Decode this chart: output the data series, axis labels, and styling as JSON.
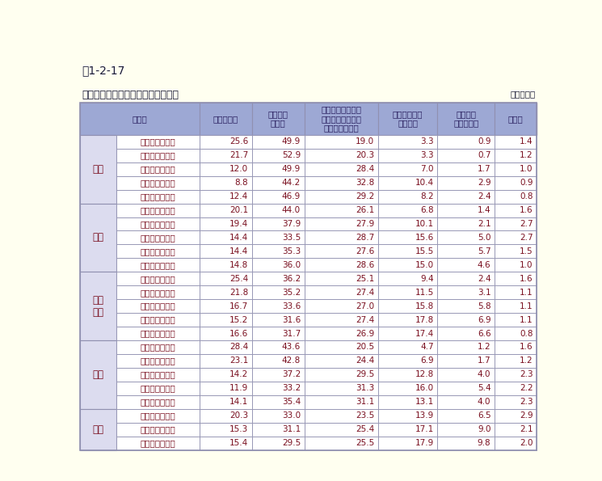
{
  "title": "表1-2-17",
  "subtitle": "教科の授業がどの程度わかりますか",
  "unit": "（単位％）",
  "col_headers": [
    "区　分",
    "よくわかる",
    "だいたい\nわかる",
    "わかることとわか\nらないことが半分\nくらいずつある",
    "わからないこ\nとが多い",
    "ほとんど\nわからない",
    "無回答"
  ],
  "subject_groups": [
    {
      "name": "国語",
      "rows": 5
    },
    {
      "name": "社会",
      "rows": 5
    },
    {
      "name": "算数\n数学",
      "rows": 5
    },
    {
      "name": "理科",
      "rows": 5
    },
    {
      "name": "英語",
      "rows": 3
    }
  ],
  "rows": [
    [
      "小学校第５学年",
      "25.6",
      "49.9",
      "19.0",
      "3.3",
      "0.9",
      "1.4"
    ],
    [
      "小学校第６学年",
      "21.7",
      "52.9",
      "20.3",
      "3.3",
      "0.7",
      "1.2"
    ],
    [
      "中学校第１学年",
      "12.0",
      "49.9",
      "28.4",
      "7.0",
      "1.7",
      "1.0"
    ],
    [
      "中学校第２学年",
      "8.8",
      "44.2",
      "32.8",
      "10.4",
      "2.9",
      "0.9"
    ],
    [
      "中学校第３学年",
      "12.4",
      "46.9",
      "29.2",
      "8.2",
      "2.4",
      "0.8"
    ],
    [
      "小学校第５学年",
      "20.1",
      "44.0",
      "26.1",
      "6.8",
      "1.4",
      "1.6"
    ],
    [
      "小学校第６学年",
      "19.4",
      "37.9",
      "27.9",
      "10.1",
      "2.1",
      "2.7"
    ],
    [
      "中学校第１学年",
      "14.4",
      "33.5",
      "28.7",
      "15.6",
      "5.0",
      "2.7"
    ],
    [
      "中学校第２学年",
      "14.4",
      "35.3",
      "27.6",
      "15.5",
      "5.7",
      "1.5"
    ],
    [
      "中学校第３学年",
      "14.8",
      "36.0",
      "28.6",
      "15.0",
      "4.6",
      "1.0"
    ],
    [
      "小学校第５学年",
      "25.4",
      "36.2",
      "25.1",
      "9.4",
      "2.4",
      "1.6"
    ],
    [
      "小学校第６学年",
      "21.8",
      "35.2",
      "27.4",
      "11.5",
      "3.1",
      "1.1"
    ],
    [
      "中学校第１学年",
      "16.7",
      "33.6",
      "27.0",
      "15.8",
      "5.8",
      "1.1"
    ],
    [
      "中学校第２学年",
      "15.2",
      "31.6",
      "27.4",
      "17.8",
      "6.9",
      "1.1"
    ],
    [
      "中学校第３学年",
      "16.6",
      "31.7",
      "26.9",
      "17.4",
      "6.6",
      "0.8"
    ],
    [
      "小学校第５学年",
      "28.4",
      "43.6",
      "20.5",
      "4.7",
      "1.2",
      "1.6"
    ],
    [
      "小学校第６学年",
      "23.1",
      "42.8",
      "24.4",
      "6.9",
      "1.7",
      "1.2"
    ],
    [
      "中学校第１学年",
      "14.2",
      "37.2",
      "29.5",
      "12.8",
      "4.0",
      "2.3"
    ],
    [
      "中学校第２学年",
      "11.9",
      "33.2",
      "31.3",
      "16.0",
      "5.4",
      "2.2"
    ],
    [
      "中学校第３学年",
      "14.1",
      "35.4",
      "31.1",
      "13.1",
      "4.0",
      "2.3"
    ],
    [
      "中学校第１学年",
      "20.3",
      "33.0",
      "23.5",
      "13.9",
      "6.5",
      "2.9"
    ],
    [
      "中学校第２学年",
      "15.3",
      "31.1",
      "25.4",
      "17.1",
      "9.0",
      "2.1"
    ],
    [
      "中学校第３学年",
      "15.4",
      "29.5",
      "25.5",
      "17.9",
      "9.8",
      "2.0"
    ]
  ],
  "bg_color": "#fffff0",
  "header_bg": "#9da8d4",
  "subj_col_bg": "#dcdcef",
  "data_row_bg": "#ffffff",
  "text_color": "#7a1020",
  "header_text_color": "#2a2060",
  "border_color": "#9090b0",
  "title_color": "#1a1a3a",
  "num_text_color": "#7a1020"
}
